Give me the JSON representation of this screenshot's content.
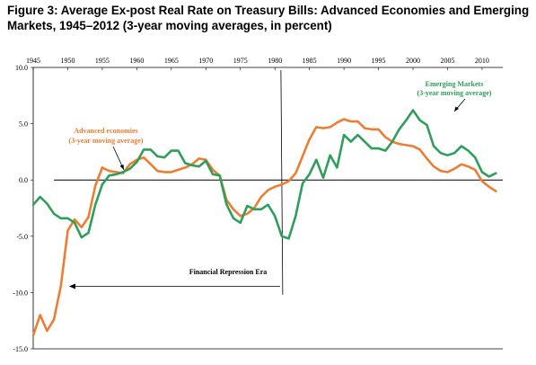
{
  "title": "Figure 3: Average Ex-post Real Rate on Treasury Bills: Advanced Economies and Emerging Markets, 1945–2012 (3-year moving averages, in percent)",
  "colors": {
    "advanced": "#ed7d31",
    "emerging": "#2e9e5b",
    "axis": "#000000"
  },
  "chart_data": {
    "type": "line",
    "title": "Figure 3: Average Ex-post Real Rate on Treasury Bills: Advanced Economies and Emerging Markets, 1945–2012 (3-year moving averages, in percent)",
    "xlim": [
      1945,
      2013
    ],
    "ylim": [
      -15,
      10
    ],
    "x_ticks": [
      "1945",
      "1950",
      "1955",
      "1960",
      "1965",
      "1970",
      "1975",
      "1980",
      "1985",
      "1990",
      "1995",
      "2000",
      "2005",
      "2010"
    ],
    "y_ticks": [
      "10.0",
      "5.0",
      "0.0",
      "-5.0",
      "-10.0",
      "-15.0"
    ],
    "grid": false,
    "series": [
      {
        "name": "Advanced economies (3-year moving average)",
        "color": "#ed7d31",
        "points": [
          [
            1945,
            -13.8
          ],
          [
            1946,
            -12.0
          ],
          [
            1947,
            -13.4
          ],
          [
            1948,
            -12.4
          ],
          [
            1949,
            -9.4
          ],
          [
            1950,
            -4.5
          ],
          [
            1951,
            -3.5
          ],
          [
            1952,
            -4.2
          ],
          [
            1953,
            -3.3
          ],
          [
            1954,
            -0.5
          ],
          [
            1955,
            1.1
          ],
          [
            1956,
            0.8
          ],
          [
            1957,
            0.7
          ],
          [
            1958,
            0.6
          ],
          [
            1959,
            1.4
          ],
          [
            1960,
            1.8
          ],
          [
            1961,
            2.0
          ],
          [
            1962,
            1.4
          ],
          [
            1963,
            0.8
          ],
          [
            1964,
            0.7
          ],
          [
            1965,
            0.7
          ],
          [
            1966,
            0.9
          ],
          [
            1967,
            1.1
          ],
          [
            1968,
            1.4
          ],
          [
            1969,
            1.9
          ],
          [
            1970,
            1.8
          ],
          [
            1971,
            0.9
          ],
          [
            1972,
            0.4
          ],
          [
            1973,
            -1.8
          ],
          [
            1974,
            -2.6
          ],
          [
            1975,
            -3.2
          ],
          [
            1976,
            -3.0
          ],
          [
            1977,
            -2.5
          ],
          [
            1978,
            -1.5
          ],
          [
            1979,
            -0.9
          ],
          [
            1980,
            -0.6
          ],
          [
            1981,
            -0.4
          ],
          [
            1982,
            -0.1
          ],
          [
            1983,
            0.6
          ],
          [
            1984,
            2.1
          ],
          [
            1985,
            3.6
          ],
          [
            1986,
            4.7
          ],
          [
            1987,
            4.6
          ],
          [
            1988,
            4.7
          ],
          [
            1989,
            5.1
          ],
          [
            1990,
            5.4
          ],
          [
            1991,
            5.2
          ],
          [
            1992,
            5.2
          ],
          [
            1993,
            4.6
          ],
          [
            1994,
            4.5
          ],
          [
            1995,
            4.5
          ],
          [
            1996,
            3.8
          ],
          [
            1997,
            3.4
          ],
          [
            1998,
            3.2
          ],
          [
            1999,
            3.1
          ],
          [
            2000,
            3.0
          ],
          [
            2001,
            2.7
          ],
          [
            2002,
            1.9
          ],
          [
            2003,
            1.2
          ],
          [
            2004,
            0.8
          ],
          [
            2005,
            0.7
          ],
          [
            2006,
            1.0
          ],
          [
            2007,
            1.4
          ],
          [
            2008,
            1.2
          ],
          [
            2009,
            0.9
          ],
          [
            2010,
            -0.1
          ],
          [
            2011,
            -0.6
          ],
          [
            2012,
            -1.0
          ]
        ]
      },
      {
        "name": "Emerging Markets (3-year moving average)",
        "color": "#2e9e5b",
        "points": [
          [
            1945,
            -2.2
          ],
          [
            1946,
            -1.5
          ],
          [
            1947,
            -2.1
          ],
          [
            1948,
            -3.0
          ],
          [
            1949,
            -3.4
          ],
          [
            1950,
            -3.4
          ],
          [
            1951,
            -3.8
          ],
          [
            1952,
            -5.1
          ],
          [
            1953,
            -4.7
          ],
          [
            1954,
            -2.2
          ],
          [
            1955,
            -0.4
          ],
          [
            1956,
            0.4
          ],
          [
            1957,
            0.5
          ],
          [
            1958,
            0.7
          ],
          [
            1959,
            1.0
          ],
          [
            1960,
            1.6
          ],
          [
            1961,
            2.7
          ],
          [
            1962,
            2.7
          ],
          [
            1963,
            2.1
          ],
          [
            1964,
            2.0
          ],
          [
            1965,
            2.6
          ],
          [
            1966,
            2.6
          ],
          [
            1967,
            1.5
          ],
          [
            1968,
            1.3
          ],
          [
            1969,
            1.2
          ],
          [
            1970,
            1.7
          ],
          [
            1971,
            0.5
          ],
          [
            1972,
            0.4
          ],
          [
            1973,
            -2.2
          ],
          [
            1974,
            -3.4
          ],
          [
            1975,
            -3.8
          ],
          [
            1976,
            -2.3
          ],
          [
            1977,
            -2.6
          ],
          [
            1978,
            -2.6
          ],
          [
            1979,
            -2.2
          ],
          [
            1980,
            -3.2
          ],
          [
            1981,
            -5.0
          ],
          [
            1982,
            -5.2
          ],
          [
            1983,
            -3.2
          ],
          [
            1984,
            -0.3
          ],
          [
            1985,
            0.5
          ],
          [
            1986,
            1.8
          ],
          [
            1987,
            0.2
          ],
          [
            1988,
            2.2
          ],
          [
            1989,
            1.1
          ],
          [
            1990,
            4.0
          ],
          [
            1991,
            3.4
          ],
          [
            1992,
            4.0
          ],
          [
            1993,
            3.4
          ],
          [
            1994,
            2.8
          ],
          [
            1995,
            2.8
          ],
          [
            1996,
            2.6
          ],
          [
            1997,
            3.4
          ],
          [
            1998,
            4.5
          ],
          [
            1999,
            5.3
          ],
          [
            2000,
            6.2
          ],
          [
            2001,
            5.3
          ],
          [
            2002,
            4.9
          ],
          [
            2003,
            3.0
          ],
          [
            2004,
            2.4
          ],
          [
            2005,
            2.2
          ],
          [
            2006,
            2.4
          ],
          [
            2007,
            3.0
          ],
          [
            2008,
            2.6
          ],
          [
            2009,
            2.0
          ],
          [
            2010,
            0.7
          ],
          [
            2011,
            0.3
          ],
          [
            2012,
            0.6
          ]
        ]
      }
    ],
    "annotations": {
      "advanced_label_line1": "Advanced economies",
      "advanced_label_line2": "(3-year moving average)",
      "emerging_label_line1": "Emerging Markets",
      "emerging_label_line2": "(3-year moving average)",
      "repression_label": "Financial Repression Era",
      "repression_divider_year": 1981
    }
  }
}
